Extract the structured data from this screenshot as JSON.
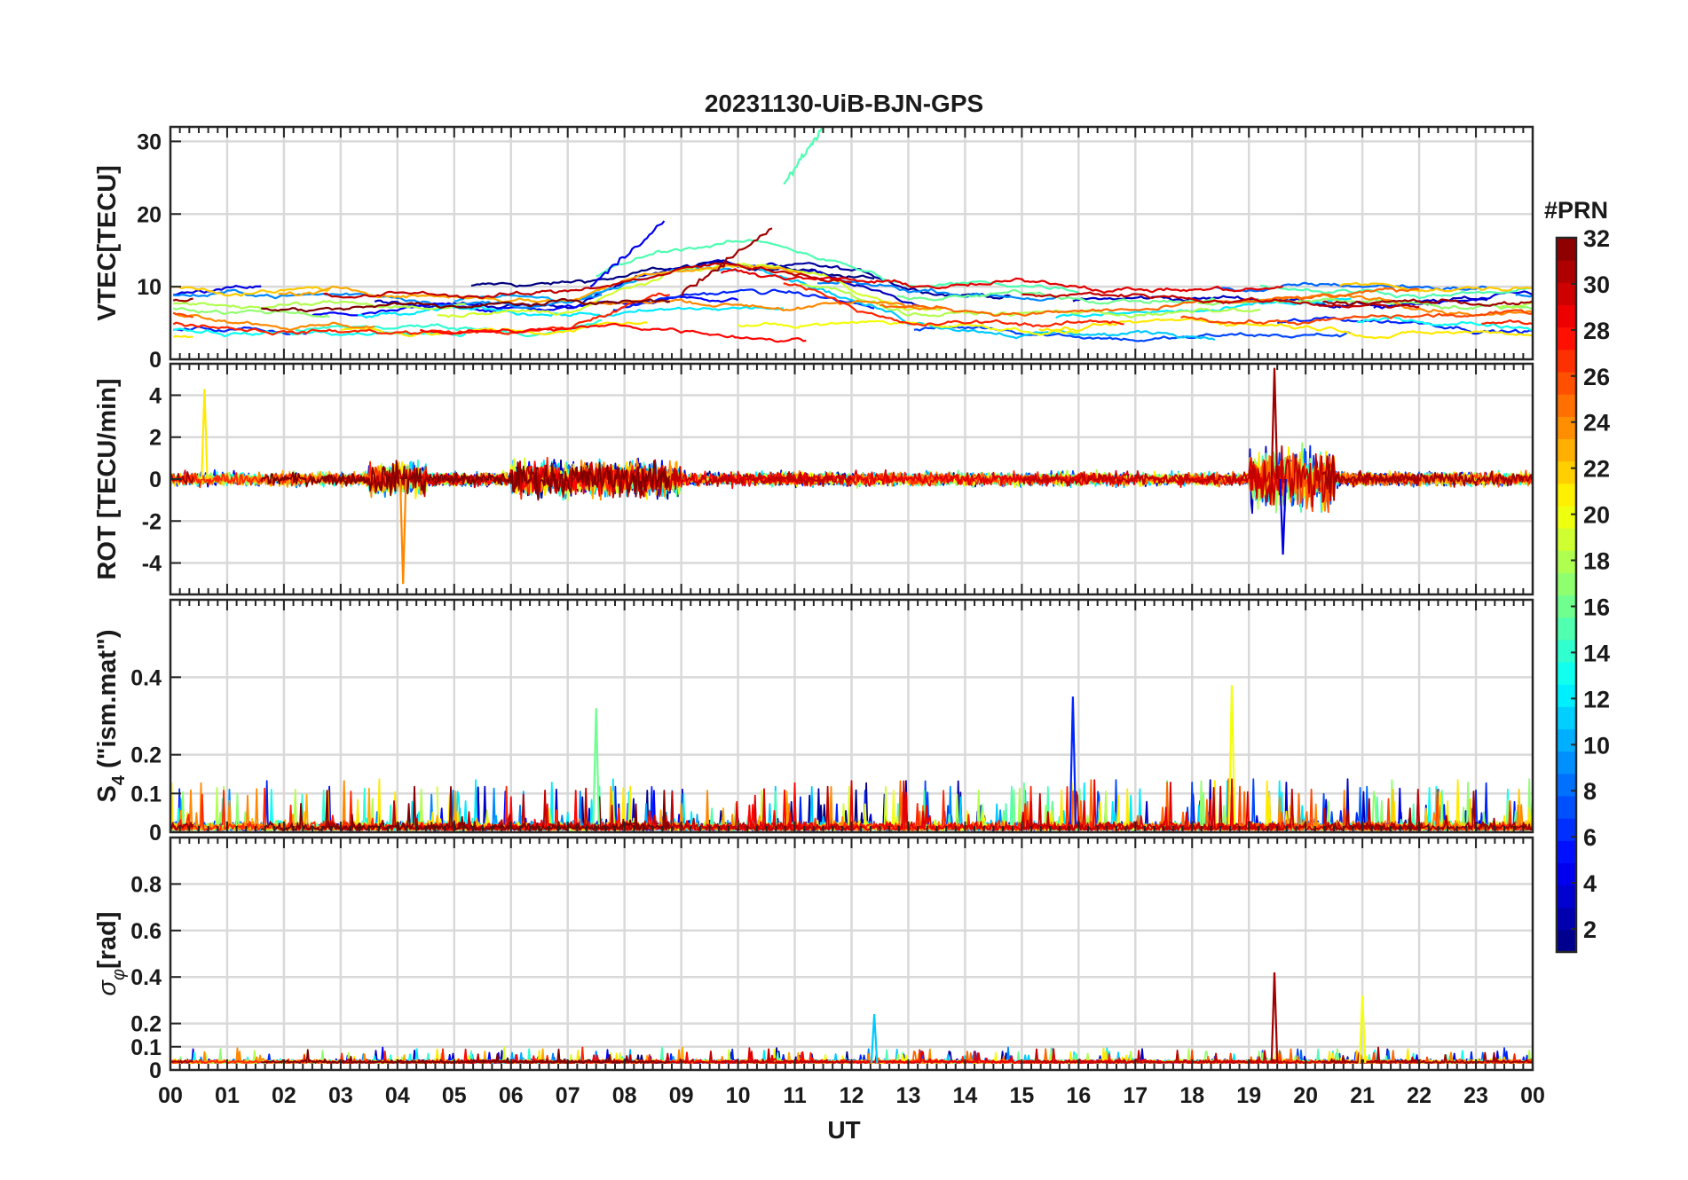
{
  "title": "20231130-UiB-BJN-GPS",
  "chart_data": [
    {
      "type": "line",
      "panel": "vtec",
      "ylabel": "VTEC[TECU]",
      "ylim": [
        0,
        32
      ],
      "yticks": [
        0,
        10,
        20,
        30
      ],
      "xlim": [
        0,
        24
      ],
      "grid": true,
      "series_note": "one colored trace per GPS PRN; colored by PRN number",
      "features": [
        {
          "prn_range": [
            3,
            6
          ],
          "x": [
            7.4,
            8.7
          ],
          "y": [
            10,
            19
          ]
        },
        {
          "prn_range": [
            14,
            16
          ],
          "x": [
            10.8,
            11.5
          ],
          "y": [
            24,
            32
          ]
        },
        {
          "prn_range": [
            30,
            32
          ],
          "x": [
            9.0,
            10.6
          ],
          "y": [
            9,
            18
          ]
        }
      ],
      "baseline_range": [
        3,
        12
      ]
    },
    {
      "type": "line",
      "panel": "rot",
      "ylabel": "ROT [TECU/min]",
      "ylim": [
        -5.5,
        5.5
      ],
      "yticks": [
        -4,
        -2,
        0,
        2,
        4
      ],
      "xlim": [
        0,
        24
      ],
      "grid": true,
      "features": [
        {
          "x": 19.45,
          "y": 5.3,
          "prn": 31
        },
        {
          "x": 19.6,
          "y": -3.6,
          "prn": 4
        },
        {
          "x": 4.1,
          "y": -5.0,
          "prn": 24
        },
        {
          "x": 0.6,
          "y": 4.3,
          "prn": 21
        }
      ]
    },
    {
      "type": "line",
      "panel": "s4",
      "ylabel": "S4 (\"ism.mat\")",
      "ylabel_main": "S",
      "ylabel_sub": "4",
      "ylabel_rest": " (\"ism.mat\")",
      "ylim": [
        0,
        0.6
      ],
      "yticks": [
        0,
        0.1,
        0.2,
        0.4
      ],
      "ytick_labels": [
        "0",
        "0.1",
        "0.2",
        "0.4"
      ],
      "xlim": [
        0,
        24
      ],
      "grid": true,
      "features": [
        {
          "x": 18.7,
          "y": 0.38,
          "prn": 20
        },
        {
          "x": 15.9,
          "y": 0.35,
          "prn": 6
        },
        {
          "x": 7.5,
          "y": 0.32,
          "prn": 16
        }
      ]
    },
    {
      "type": "line",
      "panel": "sigma_phi",
      "ylabel": "σφ[rad]",
      "ylabel_main": "σ",
      "ylabel_sub": "φ",
      "ylabel_rest": "[rad]",
      "ylim": [
        0,
        1.0
      ],
      "yticks": [
        0,
        0.1,
        0.2,
        0.4,
        0.6,
        0.8
      ],
      "ytick_labels": [
        "0",
        "0.1",
        "0.2",
        "0.4",
        "0.6",
        "0.8"
      ],
      "xlim": [
        0,
        24
      ],
      "grid": true,
      "features": [
        {
          "x": 19.45,
          "y": 0.42,
          "prn": 31
        },
        {
          "x": 21.0,
          "y": 0.32,
          "prn": 20
        },
        {
          "x": 12.4,
          "y": 0.24,
          "prn": 11
        }
      ]
    }
  ],
  "x_axis": {
    "label": "UT",
    "tick_labels": [
      "00",
      "01",
      "02",
      "03",
      "04",
      "05",
      "06",
      "07",
      "08",
      "09",
      "10",
      "11",
      "12",
      "13",
      "14",
      "15",
      "16",
      "17",
      "18",
      "19",
      "20",
      "21",
      "22",
      "23",
      "00"
    ]
  },
  "colorbar": {
    "title": "#PRN",
    "range": [
      1,
      32
    ],
    "ticks": [
      2,
      4,
      6,
      8,
      10,
      12,
      14,
      16,
      18,
      20,
      22,
      24,
      26,
      28,
      30,
      32
    ],
    "colormap": "jet",
    "levels": 32
  },
  "prns": [
    1,
    2,
    3,
    4,
    5,
    6,
    7,
    8,
    9,
    10,
    11,
    12,
    13,
    14,
    15,
    16,
    17,
    18,
    19,
    20,
    21,
    22,
    23,
    24,
    25,
    26,
    27,
    28,
    29,
    30,
    31,
    32
  ]
}
